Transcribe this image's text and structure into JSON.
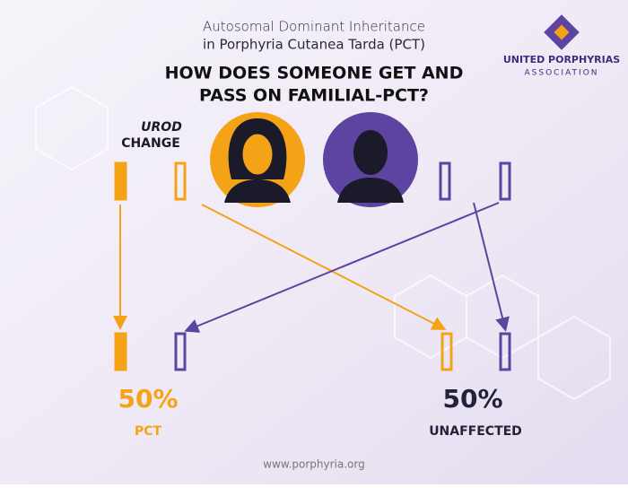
{
  "header": {
    "subtitle_lines": [
      "Autosomal Dominant Inheritance",
      "in Porphyria Cutanea Tarda (PCT)"
    ],
    "title_lines": [
      "HOW DOES SOMEONE GET AND",
      "PASS ON FAMILIAL-PCT?"
    ]
  },
  "logo": {
    "name": "UNITED PORPHYRIAS",
    "sub": "ASSOCIATION"
  },
  "legend": {
    "gene": "UROD",
    "change": "CHANGE"
  },
  "outcomes": [
    {
      "percent": "50%",
      "label": "PCT"
    },
    {
      "percent": "50%",
      "label": "UNAFFECTED"
    }
  ],
  "footer": {
    "url": "www.porphyria.org"
  }
}
